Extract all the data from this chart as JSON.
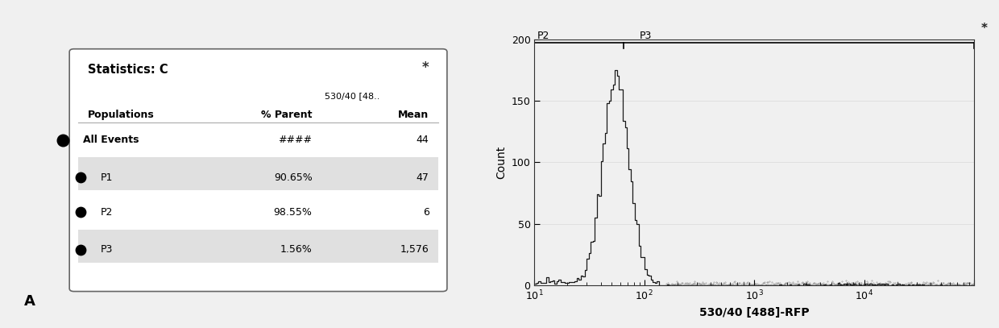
{
  "fig_width": 12.4,
  "fig_height": 4.07,
  "dpi": 100,
  "bg_color": "#f0f0f0",
  "table_title": "Statistics: C",
  "table_rows": [
    [
      "All Events",
      "####",
      "44"
    ],
    [
      "P1",
      "90.65%",
      "47"
    ],
    [
      "P2",
      "98.55%",
      "6"
    ],
    [
      "P3",
      "1.56%",
      "1,576"
    ]
  ],
  "xlabel": "530/40 [488]-RFP",
  "ylabel": "Count",
  "ylim": [
    0,
    200
  ],
  "yticks": [
    0,
    50,
    100,
    150,
    200
  ],
  "hist_color": "#1a1a1a",
  "label_A": "A"
}
